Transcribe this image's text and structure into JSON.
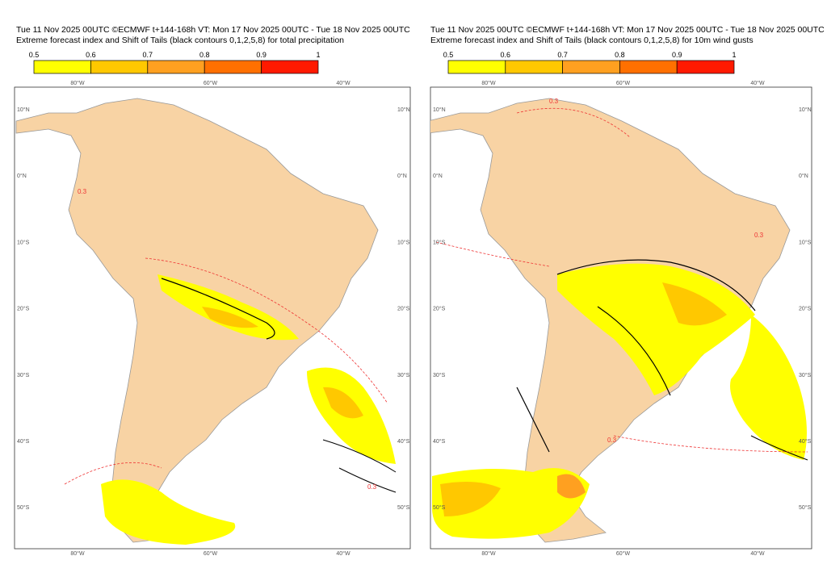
{
  "panels": [
    {
      "title_line1": "Tue 11 Nov 2025 00UTC ©ECMWF t+144-168h  VT: Mon 17 Nov 2025 00UTC - Tue 18 Nov 2025 00UTC",
      "title_line2": "Extreme forecast index and Shift of Tails (black contours 0,1,2,5,8) for total precipitation",
      "contour_labels": [
        "0.3",
        "0.3"
      ]
    },
    {
      "title_line1": "Tue 11 Nov 2025 00UTC ©ECMWF t+144-168h  VT: Mon 17 Nov 2025 00UTC - Tue 18 Nov 2025 00UTC",
      "title_line2": "Extreme forecast index and Shift of Tails (black contours 0,1,2,5,8) for 10m wind gusts",
      "contour_labels": [
        "0.3",
        "0.3",
        "0.3"
      ]
    }
  ],
  "colorbar": {
    "ticks": [
      "0.5",
      "0.6",
      "0.7",
      "0.8",
      "0.9",
      "1"
    ],
    "colors": [
      "#ffff00",
      "#ffc800",
      "#ffa020",
      "#ff7000",
      "#ff1a00"
    ]
  },
  "lat_labels": [
    "10°N",
    "0°N",
    "10°S",
    "20°S",
    "30°S",
    "40°S",
    "50°S"
  ],
  "lon_labels": [
    "80°W",
    "60°W",
    "40°W"
  ]
}
